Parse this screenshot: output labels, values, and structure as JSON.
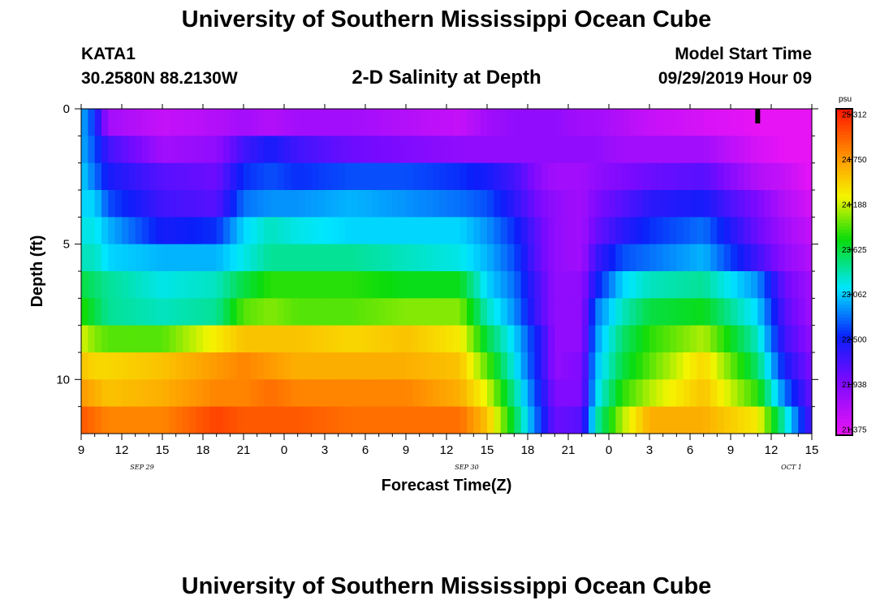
{
  "header": {
    "title": "University of Southern Mississippi Ocean Cube",
    "station": "KATA1",
    "coords": "30.2580N 88.2130W",
    "subtitle": "2-D Salinity at Depth",
    "model_start_label": "Model Start Time",
    "model_start_value": "09/29/2019 Hour 09"
  },
  "footer": {
    "title": "University of Southern Mississippi Ocean Cube"
  },
  "chart_data": {
    "type": "heatmap",
    "title": "2-D Salinity at Depth",
    "xlabel": "Forecast Time(Z)",
    "ylabel": "Depth (ft)",
    "x_ticks": [
      "9",
      "12",
      "15",
      "18",
      "21",
      "0",
      "3",
      "6",
      "9",
      "12",
      "15",
      "18",
      "21",
      "0",
      "3",
      "6",
      "9",
      "12",
      "15"
    ],
    "x_date_labels": [
      {
        "label": "SEP 29",
        "at_hour_index": 12
      },
      {
        "label": "SEP 30",
        "at_hour_index": 36
      },
      {
        "label": "OCT 1",
        "at_hour_index": 60
      }
    ],
    "x_range_hours": [
      0,
      54
    ],
    "x_start": "09/29/2019 09Z",
    "y_ticks": [
      0,
      5,
      10
    ],
    "y_range_ft": [
      0,
      12
    ],
    "colorbar": {
      "unit": "psu",
      "labels": [
        "25.312",
        "24.750",
        "24.188",
        "23.625",
        "23.062",
        "22.500",
        "21.938",
        "21.375"
      ],
      "min": 21.375,
      "max": 25.312
    },
    "time_marker_hour": 50,
    "depth_levels_ft": [
      0.5,
      1.5,
      2.5,
      3.5,
      4.5,
      5.5,
      6.5,
      7.5,
      8.5,
      9.5,
      10.5,
      11.5
    ],
    "time_keys_hours": [
      0,
      1,
      2,
      6,
      10,
      12,
      14,
      16,
      20,
      24,
      28,
      30,
      32,
      34,
      35,
      37,
      38,
      40,
      42,
      46,
      50,
      52,
      54
    ],
    "salinity_psu": [
      [
        23.0,
        22.6,
        21.8,
        21.6,
        21.7,
        21.8,
        21.7,
        21.8,
        21.8,
        21.7,
        21.6,
        21.8,
        21.9,
        21.9,
        21.9,
        21.8,
        21.8,
        21.7,
        21.6,
        21.5,
        21.4,
        21.4,
        21.4
      ],
      [
        23.0,
        22.7,
        22.3,
        21.8,
        21.9,
        22.3,
        22.5,
        22.3,
        22.1,
        22.0,
        21.9,
        21.9,
        21.9,
        21.9,
        21.9,
        21.9,
        21.9,
        21.8,
        21.8,
        21.8,
        21.5,
        21.4,
        21.4
      ],
      [
        23.1,
        22.8,
        22.5,
        22.2,
        22.1,
        22.6,
        22.7,
        22.6,
        22.7,
        22.7,
        22.6,
        22.5,
        22.3,
        21.9,
        21.8,
        21.8,
        21.9,
        22.0,
        22.1,
        22.2,
        21.7,
        21.6,
        21.4
      ],
      [
        23.1,
        23.1,
        22.7,
        22.3,
        22.2,
        22.8,
        22.9,
        22.9,
        23.0,
        22.9,
        22.8,
        22.7,
        22.4,
        22.0,
        21.9,
        21.8,
        22.0,
        22.2,
        22.4,
        22.5,
        22.0,
        21.7,
        21.5
      ],
      [
        23.2,
        23.2,
        23.0,
        22.5,
        22.6,
        23.1,
        23.3,
        23.2,
        23.1,
        23.1,
        23.1,
        22.9,
        22.6,
        22.1,
        21.9,
        21.8,
        22.1,
        22.4,
        22.6,
        22.8,
        22.1,
        21.8,
        21.6
      ],
      [
        23.3,
        23.3,
        23.1,
        23.0,
        23.0,
        23.2,
        23.4,
        23.4,
        23.4,
        23.3,
        23.2,
        23.0,
        22.7,
        22.1,
        21.9,
        21.8,
        22.3,
        22.7,
        22.8,
        23.0,
        22.3,
        21.9,
        21.7
      ],
      [
        23.6,
        23.5,
        23.4,
        23.2,
        23.3,
        23.6,
        23.8,
        23.8,
        23.8,
        23.7,
        23.7,
        23.1,
        22.8,
        22.2,
        21.9,
        21.9,
        22.5,
        23.1,
        23.3,
        23.4,
        22.9,
        22.1,
        21.8
      ],
      [
        23.8,
        23.6,
        23.4,
        23.3,
        23.4,
        23.9,
        24.0,
        23.9,
        23.9,
        24.0,
        24.0,
        23.3,
        22.9,
        22.2,
        21.9,
        21.9,
        22.8,
        23.3,
        23.6,
        23.7,
        23.1,
        22.2,
        21.8
      ],
      [
        24.2,
        24.0,
        23.9,
        23.9,
        24.3,
        24.5,
        24.5,
        24.5,
        24.4,
        24.5,
        24.3,
        23.6,
        23.1,
        22.4,
        21.9,
        21.9,
        22.9,
        23.5,
        23.8,
        24.1,
        23.3,
        22.3,
        21.9
      ],
      [
        24.5,
        24.4,
        24.4,
        24.5,
        24.7,
        24.8,
        24.7,
        24.6,
        24.6,
        24.6,
        24.5,
        23.9,
        23.2,
        22.4,
        21.9,
        22.0,
        23.0,
        23.6,
        23.9,
        24.4,
        23.5,
        22.5,
        22.0
      ],
      [
        24.7,
        24.6,
        24.5,
        24.6,
        24.8,
        24.8,
        24.9,
        24.8,
        24.8,
        24.8,
        24.6,
        24.2,
        23.4,
        22.5,
        22.0,
        22.0,
        23.1,
        23.8,
        24.1,
        24.5,
        23.8,
        22.8,
        22.1
      ],
      [
        25.0,
        24.9,
        24.8,
        24.8,
        25.1,
        25.0,
        25.0,
        25.0,
        24.9,
        24.9,
        24.9,
        24.5,
        23.6,
        22.6,
        22.1,
        22.2,
        23.3,
        24.1,
        24.6,
        24.6,
        24.3,
        23.3,
        22.2
      ]
    ]
  }
}
